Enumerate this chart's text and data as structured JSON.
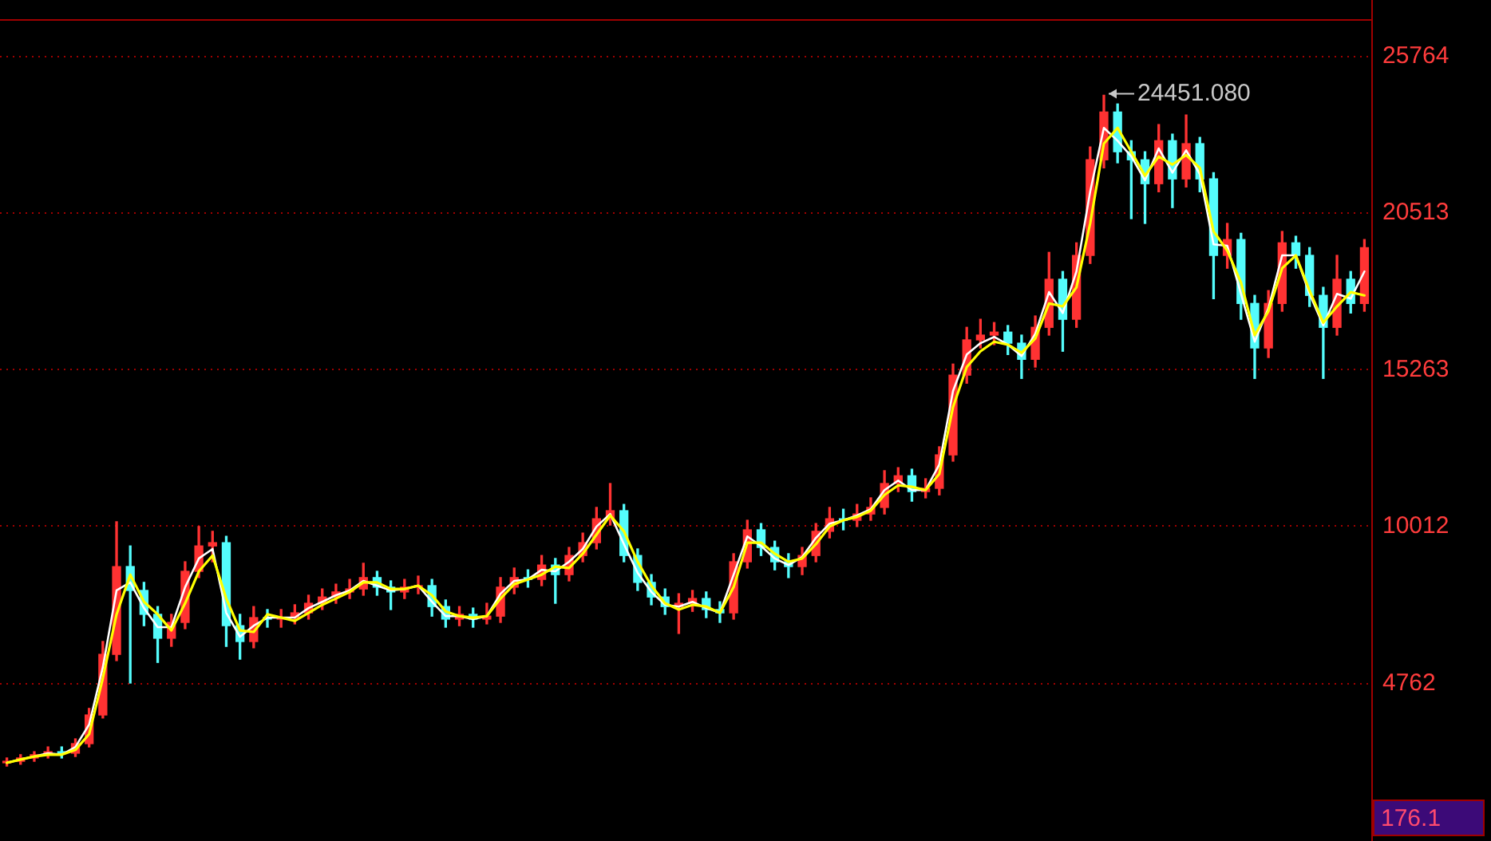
{
  "chart_data": {
    "type": "candlestick",
    "categories": [
      null,
      null,
      null,
      null,
      null,
      null,
      null,
      null,
      null,
      null,
      null,
      null,
      null,
      null,
      null,
      null,
      null,
      null,
      null,
      null,
      null,
      null,
      null,
      null,
      null,
      null,
      null,
      null,
      null,
      null,
      null,
      null,
      null,
      null,
      null,
      null,
      null,
      null,
      null,
      null,
      null,
      null,
      null,
      null,
      null,
      null,
      null,
      null,
      null,
      null,
      null,
      null,
      null,
      null,
      null,
      null,
      null,
      null,
      null,
      null,
      null,
      null,
      null,
      null,
      null,
      null,
      null,
      null,
      null,
      null,
      null,
      null,
      null,
      null,
      null,
      null,
      null,
      null,
      null,
      null,
      null,
      null,
      null,
      null,
      null,
      null,
      null,
      null,
      null,
      null,
      null,
      null,
      null,
      null,
      null,
      null,
      null,
      null,
      null,
      null
    ],
    "ohlc": [
      [
        2100,
        2260,
        1990,
        2150
      ],
      [
        2150,
        2370,
        2050,
        2260
      ],
      [
        2260,
        2470,
        2150,
        2370
      ],
      [
        2370,
        2630,
        2260,
        2470
      ],
      [
        2470,
        2630,
        2260,
        2420
      ],
      [
        2420,
        2900,
        2310,
        2740
      ],
      [
        2740,
        3920,
        2630,
        3700
      ],
      [
        3700,
        6160,
        3600,
        5730
      ],
      [
        5730,
        10170,
        5520,
        8670
      ],
      [
        8670,
        9360,
        4770,
        7870
      ],
      [
        7870,
        8140,
        6690,
        7070
      ],
      [
        7070,
        7330,
        5460,
        6270
      ],
      [
        6270,
        7070,
        6000,
        6800
      ],
      [
        6800,
        8830,
        6590,
        8510
      ],
      [
        8510,
        10010,
        8300,
        9360
      ],
      [
        9360,
        9850,
        8830,
        9470
      ],
      [
        9470,
        9680,
        6000,
        6690
      ],
      [
        6690,
        7070,
        5570,
        6160
      ],
      [
        6160,
        7330,
        5950,
        6960
      ],
      [
        6960,
        7230,
        6640,
        6910
      ],
      [
        6910,
        7230,
        6640,
        6960
      ],
      [
        6960,
        7390,
        6750,
        7120
      ],
      [
        7120,
        7710,
        6910,
        7440
      ],
      [
        7440,
        7920,
        7230,
        7650
      ],
      [
        7650,
        8080,
        7440,
        7820
      ],
      [
        7820,
        8240,
        7600,
        7920
      ],
      [
        7920,
        8780,
        7710,
        8300
      ],
      [
        8300,
        8510,
        7710,
        7980
      ],
      [
        7980,
        8190,
        7230,
        7820
      ],
      [
        7820,
        8240,
        7600,
        7980
      ],
      [
        7980,
        8350,
        7760,
        8030
      ],
      [
        8030,
        8240,
        7010,
        7330
      ],
      [
        7330,
        7550,
        6640,
        6910
      ],
      [
        6910,
        7330,
        6690,
        7070
      ],
      [
        7070,
        7280,
        6640,
        6910
      ],
      [
        6910,
        7440,
        6750,
        7010
      ],
      [
        7010,
        8300,
        6800,
        7980
      ],
      [
        7980,
        8620,
        7760,
        8300
      ],
      [
        8300,
        8560,
        7980,
        8240
      ],
      [
        8240,
        9040,
        8030,
        8720
      ],
      [
        8720,
        8940,
        7440,
        8400
      ],
      [
        8400,
        9310,
        8190,
        9040
      ],
      [
        9040,
        9790,
        8830,
        9470
      ],
      [
        9470,
        10650,
        9260,
        10270
      ],
      [
        10270,
        11450,
        10060,
        10540
      ],
      [
        10540,
        10750,
        8830,
        9040
      ],
      [
        9040,
        9260,
        7870,
        8140
      ],
      [
        8140,
        8400,
        7390,
        7650
      ],
      [
        7650,
        7920,
        7070,
        7330
      ],
      [
        7330,
        7760,
        6430,
        7440
      ],
      [
        7440,
        7870,
        7170,
        7600
      ],
      [
        7600,
        7820,
        6960,
        7230
      ],
      [
        7230,
        7490,
        6800,
        7120
      ],
      [
        7120,
        9100,
        6910,
        8830
      ],
      [
        8830,
        10220,
        8620,
        9900
      ],
      [
        9900,
        10110,
        9040,
        9310
      ],
      [
        9310,
        9520,
        8560,
        8830
      ],
      [
        8830,
        9100,
        8300,
        8670
      ],
      [
        8670,
        9310,
        8400,
        9040
      ],
      [
        9040,
        10110,
        8830,
        9850
      ],
      [
        9850,
        10650,
        9630,
        10270
      ],
      [
        10270,
        10590,
        9900,
        10220
      ],
      [
        10220,
        10750,
        10010,
        10430
      ],
      [
        10430,
        10970,
        10220,
        10650
      ],
      [
        10650,
        11880,
        10430,
        11450
      ],
      [
        11450,
        11980,
        11180,
        11710
      ],
      [
        11710,
        11930,
        10860,
        11180
      ],
      [
        11180,
        11610,
        10970,
        11290
      ],
      [
        11290,
        12680,
        11070,
        12410
      ],
      [
        12410,
        15450,
        12200,
        15080
      ],
      [
        15080,
        16680,
        14810,
        16260
      ],
      [
        16260,
        16950,
        15990,
        16420
      ],
      [
        16420,
        16840,
        16100,
        16520
      ],
      [
        16520,
        16740,
        15770,
        16150
      ],
      [
        16150,
        16420,
        14970,
        15610
      ],
      [
        15610,
        17060,
        15350,
        16680
      ],
      [
        16680,
        19190,
        16420,
        18290
      ],
      [
        18290,
        18550,
        15880,
        16950
      ],
      [
        16950,
        19510,
        16680,
        19090
      ],
      [
        19090,
        22720,
        18820,
        22290
      ],
      [
        22290,
        24451.08,
        22020,
        23890
      ],
      [
        23890,
        24160,
        22190,
        22560
      ],
      [
        22560,
        22930,
        20320,
        22290
      ],
      [
        22290,
        22560,
        20160,
        21490
      ],
      [
        21490,
        23470,
        21220,
        22930
      ],
      [
        22930,
        23150,
        20690,
        21650
      ],
      [
        21650,
        23790,
        21380,
        22830
      ],
      [
        22830,
        23040,
        21220,
        21650
      ],
      [
        21650,
        21860,
        17640,
        19090
      ],
      [
        19090,
        20160,
        18660,
        19620
      ],
      [
        19620,
        19830,
        16950,
        17480
      ],
      [
        17480,
        17750,
        14970,
        15990
      ],
      [
        15990,
        17910,
        15670,
        17480
      ],
      [
        17480,
        19890,
        17220,
        19510
      ],
      [
        19510,
        19730,
        18660,
        19090
      ],
      [
        19090,
        19350,
        17380,
        17750
      ],
      [
        17750,
        18020,
        14970,
        16680
      ],
      [
        16680,
        19090,
        16420,
        18290
      ],
      [
        18290,
        18550,
        17160,
        17480
      ],
      [
        17480,
        19620,
        17220,
        19350
      ]
    ],
    "colors": [
      "#ff3232",
      "#ff3232",
      "#ff3232",
      "#ff3232",
      "#54fcfc",
      "#ff3232",
      "#ff3232",
      "#ff3232",
      "#ff3232",
      "#54fcfc",
      "#54fcfc",
      "#54fcfc",
      "#ff3232",
      "#ff3232",
      "#ff3232",
      "#ff3232",
      "#54fcfc",
      "#54fcfc",
      "#ff3232",
      "#54fcfc",
      "#ff3232",
      "#ff3232",
      "#ff3232",
      "#ff3232",
      "#ff3232",
      "#ff3232",
      "#ff3232",
      "#54fcfc",
      "#54fcfc",
      "#ff3232",
      "#ff3232",
      "#54fcfc",
      "#54fcfc",
      "#ff3232",
      "#54fcfc",
      "#ff3232",
      "#ff3232",
      "#ff3232",
      "#54fcfc",
      "#ff3232",
      "#54fcfc",
      "#ff3232",
      "#ff3232",
      "#ff3232",
      "#ff3232",
      "#54fcfc",
      "#54fcfc",
      "#54fcfc",
      "#54fcfc",
      "#ff3232",
      "#ff3232",
      "#54fcfc",
      "#54fcfc",
      "#ff3232",
      "#ff3232",
      "#54fcfc",
      "#54fcfc",
      "#54fcfc",
      "#ff3232",
      "#ff3232",
      "#ff3232",
      "#54fcfc",
      "#ff3232",
      "#ff3232",
      "#ff3232",
      "#ff3232",
      "#54fcfc",
      "#ff3232",
      "#ff3232",
      "#ff3232",
      "#ff3232",
      "#ff3232",
      "#ff3232",
      "#54fcfc",
      "#54fcfc",
      "#ff3232",
      "#ff3232",
      "#54fcfc",
      "#ff3232",
      "#ff3232",
      "#ff3232",
      "#54fcfc",
      "#54fcfc",
      "#54fcfc",
      "#ff3232",
      "#54fcfc",
      "#ff3232",
      "#54fcfc",
      "#54fcfc",
      "#ff3232",
      "#54fcfc",
      "#54fcfc",
      "#ff3232",
      "#ff3232",
      "#54fcfc",
      "#54fcfc",
      "#54fcfc",
      "#ff3232",
      "#54fcfc",
      "#ff3232"
    ],
    "series": [
      {
        "type": "line",
        "color": "#ffffff",
        "values": [
          2100,
          2210,
          2310,
          2420,
          2370,
          2630,
          3380,
          5300,
          7870,
          8140,
          7280,
          6640,
          6640,
          7980,
          8940,
          9260,
          7120,
          6320,
          6690,
          6960,
          6960,
          6960,
          7280,
          7490,
          7710,
          7870,
          8190,
          8030,
          7870,
          7920,
          8030,
          7490,
          7010,
          7010,
          6910,
          7010,
          7760,
          8190,
          8240,
          8560,
          8510,
          8830,
          9260,
          10010,
          10430,
          9420,
          8460,
          7820,
          7390,
          7330,
          7490,
          7280,
          7120,
          8400,
          9680,
          9360,
          8940,
          8720,
          8990,
          9630,
          10110,
          10220,
          10380,
          10590,
          11230,
          11550,
          11230,
          11230,
          12090,
          14550,
          15770,
          16150,
          16360,
          16100,
          15720,
          16470,
          17860,
          17160,
          18550,
          21220,
          23360,
          22930,
          22400,
          21600,
          22670,
          21860,
          22610,
          21810,
          19460,
          19410,
          17800,
          16200,
          17320,
          19090,
          19090,
          17800,
          16740,
          17800,
          17640,
          18550
        ]
      },
      {
        "type": "line",
        "color": "#ffff00",
        "values": [
          2100,
          2210,
          2310,
          2370,
          2370,
          2530,
          3060,
          4930,
          7070,
          8400,
          7490,
          7070,
          6530,
          7440,
          8510,
          9040,
          7600,
          6530,
          6480,
          7070,
          6960,
          6850,
          7120,
          7390,
          7600,
          7820,
          8140,
          8140,
          7920,
          7920,
          8030,
          7710,
          7170,
          7010,
          6960,
          7010,
          7600,
          8080,
          8240,
          8400,
          8670,
          8620,
          9100,
          9740,
          10380,
          9850,
          8830,
          8030,
          7440,
          7230,
          7390,
          7330,
          7120,
          7980,
          9470,
          9470,
          9100,
          8830,
          8940,
          9420,
          10010,
          10220,
          10330,
          10540,
          11070,
          11390,
          11340,
          11230,
          11770,
          14010,
          15350,
          15880,
          16200,
          16100,
          15830,
          16310,
          17480,
          17380,
          18020,
          20160,
          22830,
          23360,
          22560,
          21760,
          22400,
          22130,
          22450,
          22020,
          19890,
          19250,
          18180,
          16420,
          17220,
          18660,
          19090,
          17910,
          16840,
          17380,
          17860,
          17750
        ]
      }
    ],
    "ylim": [
      -520,
      27000
    ],
    "yticks": [
      4762,
      10012,
      15263,
      20513,
      25764
    ],
    "grid": "y",
    "tick_labels": "y",
    "annotations": [
      "24451.080",
      "176.1"
    ]
  }
}
